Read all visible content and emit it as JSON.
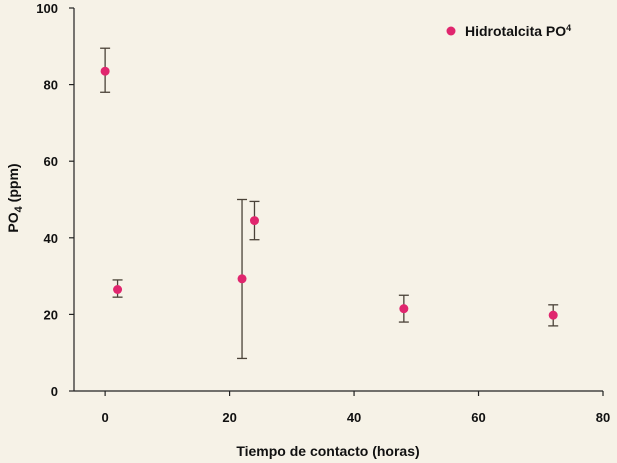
{
  "chart_data": {
    "type": "scatter",
    "title": "",
    "xlabel": "Tiempo de contacto (horas)",
    "ylabel_main": "PO",
    "ylabel_sub": "4",
    "ylabel_rest": " (ppm)",
    "xlim": [
      -5,
      80
    ],
    "ylim": [
      0,
      100
    ],
    "x_ticks": [
      0,
      20,
      40,
      60,
      80
    ],
    "y_ticks": [
      0,
      20,
      40,
      60,
      80,
      100
    ],
    "grid": false,
    "legend_position": "top-right",
    "series": [
      {
        "name_main": "Hidrotalcita PO",
        "name_sub": "4",
        "color": "#e0266e",
        "points": [
          {
            "x": 0,
            "y": 83.5,
            "err_low": 78,
            "err_high": 89.5
          },
          {
            "x": 2,
            "y": 26.5,
            "err_low": 24.5,
            "err_high": 29
          },
          {
            "x": 22,
            "y": 29.3,
            "err_low": 8.5,
            "err_high": 50
          },
          {
            "x": 24,
            "y": 44.5,
            "err_low": 39.5,
            "err_high": 49.5
          },
          {
            "x": 48,
            "y": 21.5,
            "err_low": 18,
            "err_high": 25
          },
          {
            "x": 72,
            "y": 19.8,
            "err_low": 17,
            "err_high": 22.5
          }
        ]
      }
    ]
  }
}
